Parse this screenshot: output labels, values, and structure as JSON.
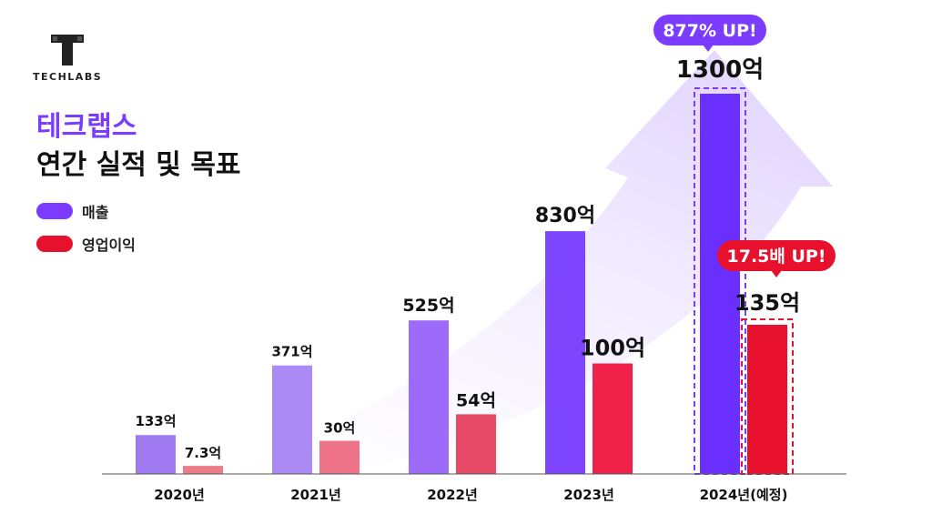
{
  "brand": {
    "name": "TECHLABS"
  },
  "header": {
    "title_line1": "테크랩스",
    "title_line2": "연간 실적 및 목표"
  },
  "legend": [
    {
      "label": "매출",
      "color": "#7B3CFF"
    },
    {
      "label": "영업이익",
      "color": "#E8112D"
    }
  ],
  "callouts": {
    "revenue": "877% UP!",
    "profit": "17.5배 UP!"
  },
  "chart_data": {
    "type": "bar",
    "categories": [
      "2020년",
      "2021년",
      "2022년",
      "2023년",
      "2024년(예정)"
    ],
    "series": [
      {
        "name": "매출",
        "values": [
          133,
          371,
          525,
          830,
          1300
        ],
        "labels": [
          "133억",
          "371억",
          "525억",
          "830억",
          "1300억"
        ],
        "colors": [
          "#A07AF0",
          "#AC8AF6",
          "#9C6BFA",
          "#7E45FF",
          "#6A2EFF"
        ]
      },
      {
        "name": "영업이익",
        "values": [
          7.3,
          30,
          54,
          100,
          135
        ],
        "labels": [
          "7.3억",
          "30억",
          "54억",
          "100억",
          "135억"
        ],
        "colors": [
          "#EC7C88",
          "#EE7388",
          "#E74A66",
          "#F0224A",
          "#E8112D"
        ]
      }
    ],
    "highlight_category": "2024년(예정)"
  }
}
